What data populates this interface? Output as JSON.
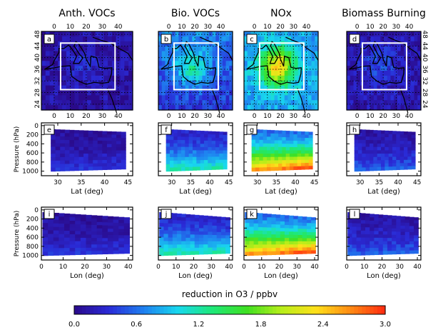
{
  "chart_data": {
    "type": "heatmap",
    "title": "",
    "columns": [
      {
        "id": "anth",
        "title": "Anth. VOCs",
        "letters": [
          "a",
          "e",
          "i"
        ],
        "intensity": 0.1
      },
      {
        "id": "bio",
        "title": "Bio. VOCs",
        "letters": [
          "b",
          "f",
          "j"
        ],
        "intensity": 0.35
      },
      {
        "id": "nox",
        "title": "NOx",
        "letters": [
          "c",
          "g",
          "k"
        ],
        "intensity": 0.78
      },
      {
        "id": "bb",
        "title": "Biomass Burning",
        "letters": [
          "d",
          "h",
          "l"
        ],
        "intensity": 0.16
      }
    ],
    "map_row": {
      "x_ticks": [
        "0",
        "10",
        "20",
        "30",
        "40"
      ],
      "y_ticks": [
        "24",
        "28",
        "32",
        "36",
        "40",
        "44",
        "48"
      ],
      "lon_range": [
        -8,
        49
      ],
      "lat_range": [
        22,
        49
      ],
      "box_lon": [
        4,
        38
      ],
      "box_lat": [
        29,
        45
      ]
    },
    "lat_row": {
      "xlabel": "Lat (deg)",
      "ylabel": "Pressure (hPa)",
      "x_ticks": [
        "30",
        "35",
        "40",
        "45"
      ],
      "y_ticks": [
        "0",
        "200",
        "400",
        "600",
        "800",
        "1000"
      ],
      "x_range": [
        26.5,
        46
      ],
      "y_range": [
        1100,
        -60
      ]
    },
    "lon_row": {
      "xlabel": "Lon (deg)",
      "ylabel": "Pressure (hPa)",
      "x_ticks": [
        "0",
        "10",
        "20",
        "30",
        "40"
      ],
      "y_ticks": [
        "0",
        "200",
        "400",
        "600",
        "800",
        "1000"
      ],
      "x_range": [
        0,
        42
      ],
      "y_range": [
        1100,
        -60
      ]
    },
    "colorbar": {
      "label": "reduction in O3 / ppbv",
      "ticks": [
        "0.0",
        "0.6",
        "1.2",
        "1.8",
        "2.4",
        "3.0"
      ],
      "range": [
        0,
        3
      ],
      "colors": [
        "#2a0a8a",
        "#2a2ad6",
        "#1f7ff0",
        "#18d8ee",
        "#1ee878",
        "#3fe022",
        "#b8ee1a",
        "#ffe01a",
        "#ff8a14",
        "#ff2a10"
      ]
    }
  }
}
